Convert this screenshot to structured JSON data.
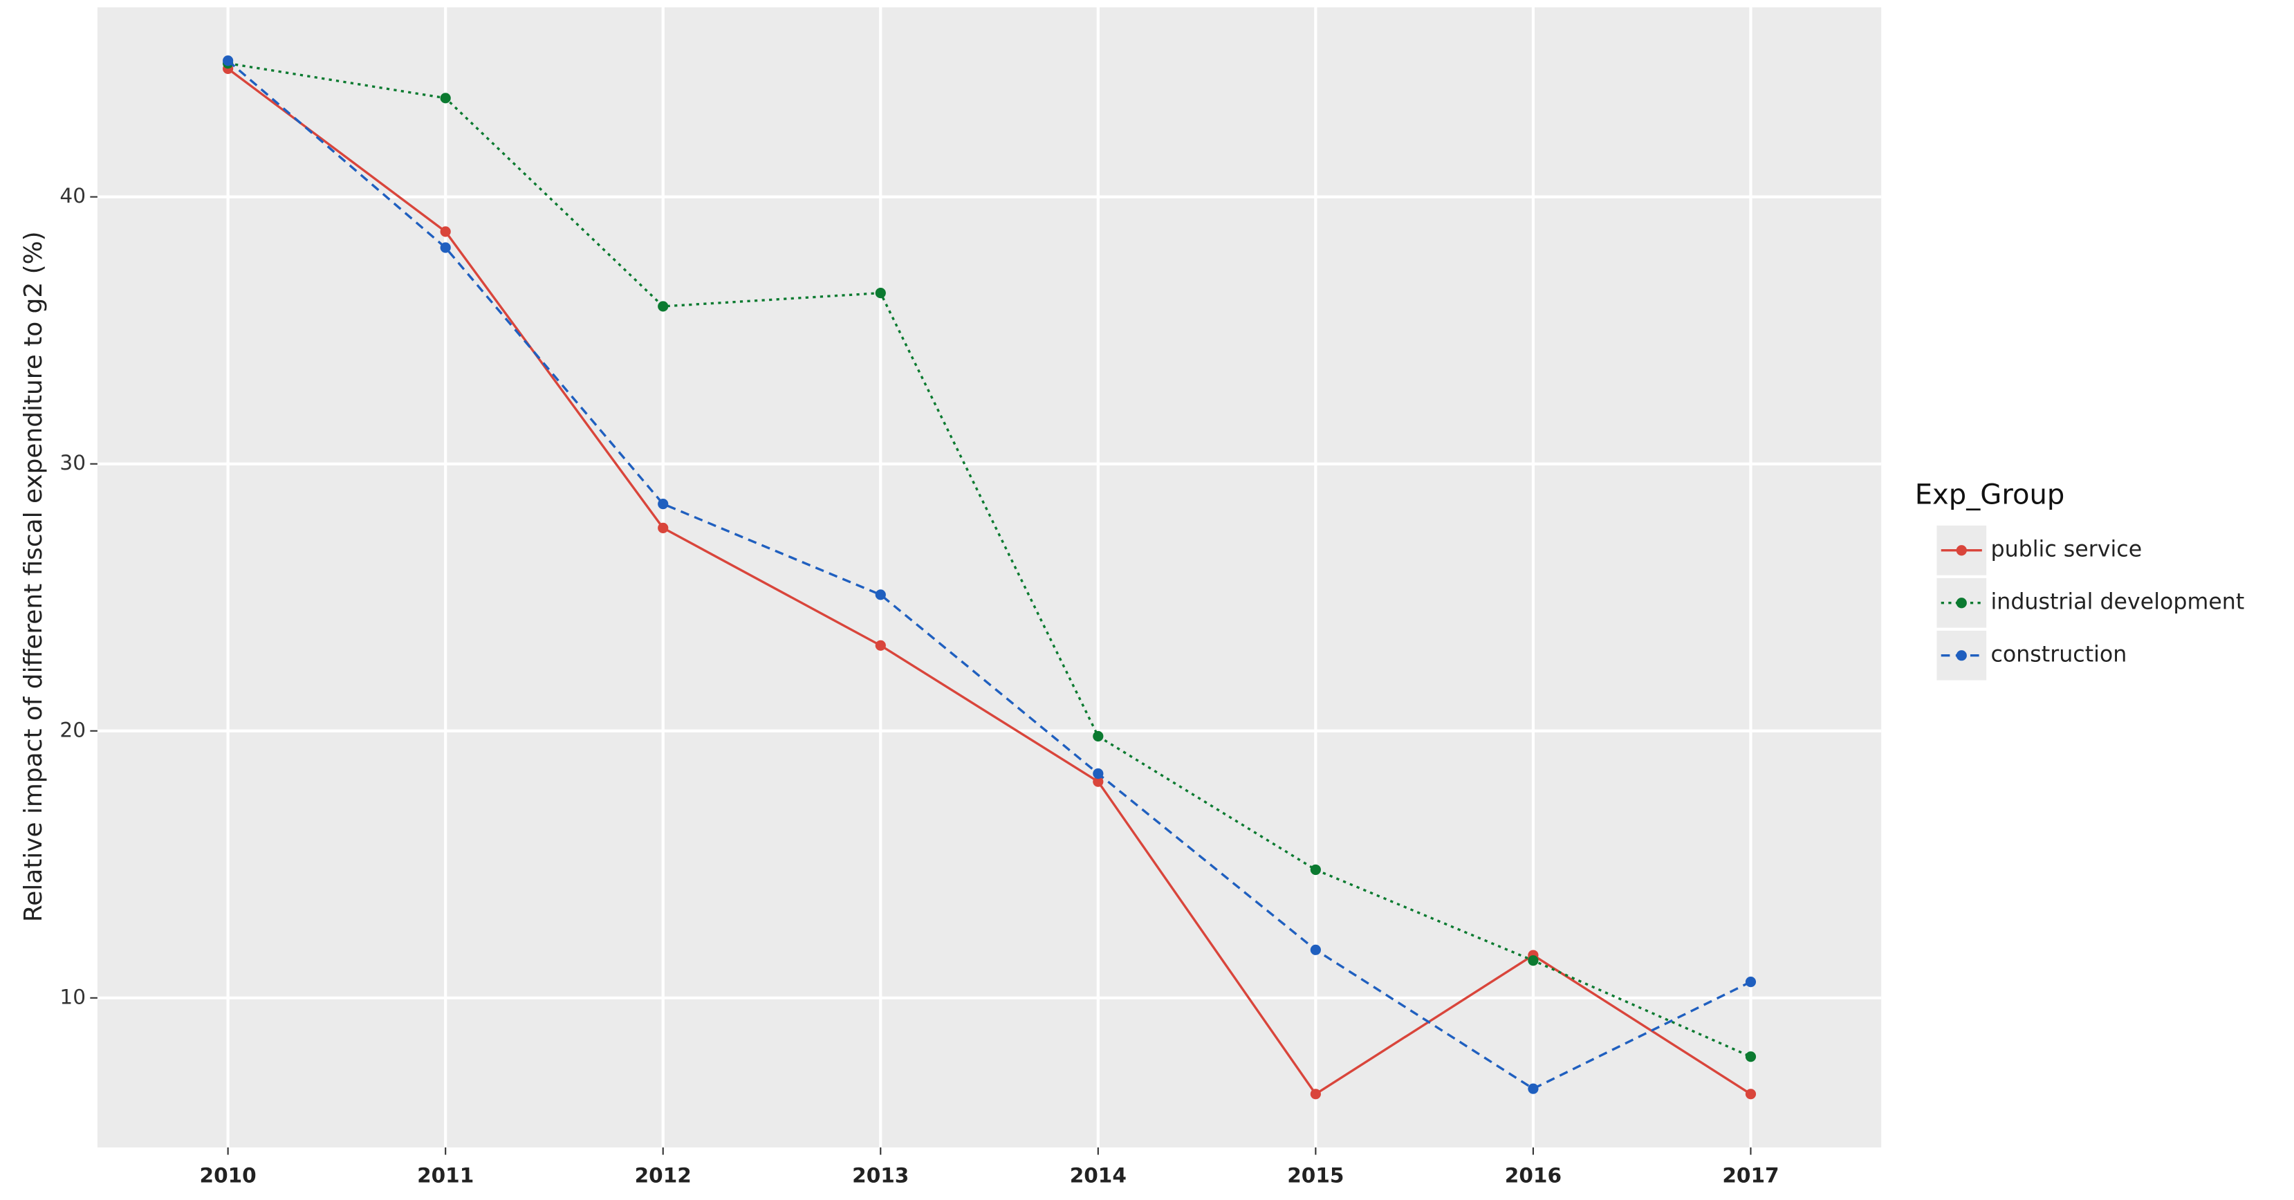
{
  "chart_data": {
    "type": "line",
    "y_label": "Relative impact of different fiscal expenditure to g2 (%)",
    "categories": [
      "2010",
      "2011",
      "2012",
      "2013",
      "2014",
      "2015",
      "2016",
      "2017"
    ],
    "series": [
      {
        "name": "public service",
        "color": "#d9453b",
        "dash": "solid",
        "values": [
          44.8,
          38.7,
          27.6,
          23.2,
          18.1,
          6.4,
          11.6,
          6.4
        ]
      },
      {
        "name": "industrial development",
        "color": "#0b7a30",
        "dash": "dotted",
        "values": [
          45.0,
          43.7,
          35.9,
          36.4,
          19.8,
          14.8,
          11.4,
          7.8
        ]
      },
      {
        "name": "construction",
        "color": "#1f5fbf",
        "dash": "dashed",
        "values": [
          45.1,
          38.1,
          28.5,
          25.1,
          18.4,
          11.8,
          6.6,
          10.6
        ]
      }
    ],
    "legend_title": "Exp_Group",
    "legend": "right",
    "ylim": [
      4.4,
      47.1
    ],
    "yticks": [
      10,
      20,
      30,
      40
    ],
    "grid": true
  }
}
